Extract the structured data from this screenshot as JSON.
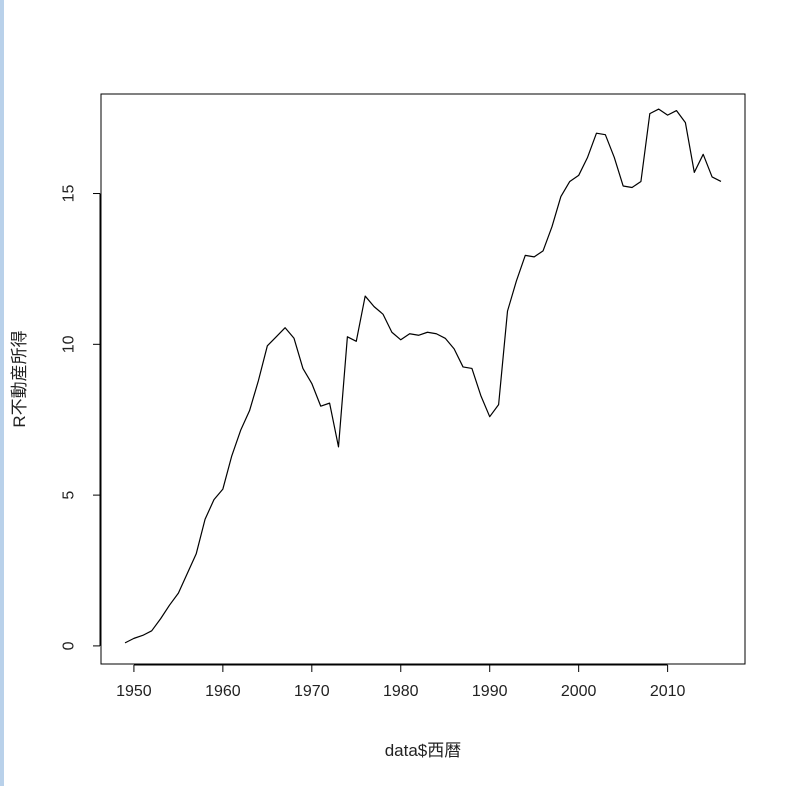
{
  "chart_data": {
    "type": "line",
    "title": "",
    "xlabel": "data$西暦",
    "ylabel": "R不動産所得",
    "xlim": [
      1946.3,
      2018.7
    ],
    "ylim": [
      -0.6,
      18.3
    ],
    "xticks": [
      1950,
      1960,
      1970,
      1980,
      1990,
      2000,
      2010
    ],
    "xtick_labels": [
      "1950",
      "1960",
      "1970",
      "1980",
      "1990",
      "2000",
      "2010"
    ],
    "yticks": [
      0,
      5,
      10,
      15
    ],
    "ytick_labels": [
      "0",
      "5",
      "10",
      "15"
    ],
    "grid": false,
    "series": [
      {
        "name": "",
        "color": "#000000",
        "x": [
          1949,
          1950,
          1951,
          1952,
          1953,
          1954,
          1955,
          1956,
          1957,
          1958,
          1959,
          1960,
          1961,
          1962,
          1963,
          1964,
          1965,
          1966,
          1967,
          1968,
          1969,
          1970,
          1971,
          1972,
          1973,
          1974,
          1975,
          1976,
          1977,
          1978,
          1979,
          1980,
          1981,
          1982,
          1983,
          1984,
          1985,
          1986,
          1987,
          1988,
          1989,
          1990,
          1991,
          1992,
          1993,
          1994,
          1995,
          1996,
          1997,
          1998,
          1999,
          2000,
          2001,
          2002,
          2003,
          2004,
          2005,
          2006,
          2007,
          2008,
          2009,
          2010,
          2011,
          2012,
          2013,
          2014,
          2015,
          2016
        ],
        "y": [
          0.1,
          0.25,
          0.35,
          0.5,
          0.9,
          1.35,
          1.75,
          2.4,
          3.05,
          4.2,
          4.85,
          5.2,
          6.3,
          7.15,
          7.8,
          8.8,
          9.95,
          10.25,
          10.55,
          10.2,
          9.2,
          8.7,
          7.95,
          8.05,
          6.6,
          10.25,
          10.1,
          11.6,
          11.25,
          11.0,
          10.4,
          10.15,
          10.35,
          10.3,
          10.4,
          10.35,
          10.2,
          9.85,
          9.25,
          9.2,
          8.3,
          7.6,
          8.0,
          11.1,
          12.1,
          12.95,
          12.9,
          13.1,
          13.9,
          14.9,
          15.4,
          15.6,
          16.2,
          17.0,
          16.95,
          16.2,
          15.25,
          15.2,
          15.4,
          17.65,
          17.8,
          17.6,
          17.75,
          17.35,
          15.7,
          16.3,
          15.55,
          15.4
        ]
      }
    ]
  }
}
